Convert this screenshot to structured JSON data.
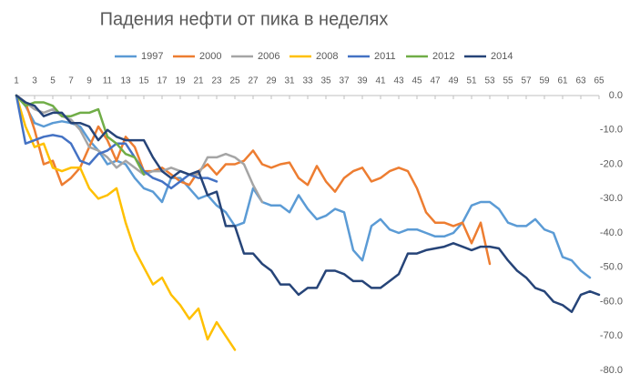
{
  "chart_data": {
    "type": "line",
    "title": "Падения нефти от пика в неделях",
    "x": [
      1,
      2,
      3,
      4,
      5,
      6,
      7,
      8,
      9,
      10,
      11,
      12,
      13,
      14,
      15,
      16,
      17,
      18,
      19,
      20,
      21,
      22,
      23,
      24,
      25,
      26,
      27,
      28,
      29,
      30,
      31,
      32,
      33,
      34,
      35,
      36,
      37,
      38,
      39,
      40,
      41,
      42,
      43,
      44,
      45,
      46,
      47,
      48,
      49,
      50,
      51,
      52,
      53,
      54,
      55,
      56,
      57,
      58,
      59,
      60,
      61,
      62,
      63,
      64,
      65
    ],
    "xlim": [
      1,
      65
    ],
    "xticks": [
      1,
      3,
      5,
      7,
      9,
      11,
      13,
      15,
      17,
      19,
      21,
      23,
      25,
      27,
      29,
      31,
      33,
      35,
      37,
      39,
      41,
      43,
      45,
      47,
      49,
      51,
      53,
      55,
      57,
      59,
      61,
      63,
      65
    ],
    "ylim": [
      -80,
      0
    ],
    "yticks": [
      {
        "value": 0,
        "label": "0.0"
      },
      {
        "value": -10,
        "label": "-10.0"
      },
      {
        "value": -20,
        "label": "-20.0"
      },
      {
        "value": -30,
        "label": "-30.0"
      },
      {
        "value": -40,
        "label": "-40.0"
      },
      {
        "value": -50,
        "label": "-50.0"
      },
      {
        "value": -60,
        "label": "-60.0"
      },
      {
        "value": -70,
        "label": "-70.0"
      },
      {
        "value": -80,
        "label": "-80.0"
      }
    ],
    "legend": "top",
    "series": [
      {
        "name": "1997",
        "color": "#5b9bd5",
        "values": [
          0,
          -3,
          -8,
          -9,
          -8,
          -7.5,
          -8,
          -9,
          -13,
          -16,
          -20,
          -19,
          -20,
          -24,
          -27,
          -28,
          -31,
          -24,
          -24,
          -27,
          -30,
          -29,
          -32,
          -34,
          -38,
          -37,
          -27,
          -31,
          -32,
          -32,
          -34,
          -29,
          -33,
          -36,
          -35,
          -33,
          -34,
          -45,
          -48,
          -38,
          -36,
          -39,
          -40,
          -39,
          -39,
          -40,
          -41,
          -41,
          -40,
          -37,
          -32,
          -31,
          -31,
          -33,
          -37,
          -38,
          -38,
          -36,
          -39,
          -40,
          -47,
          -48,
          -51,
          -53,
          null
        ]
      },
      {
        "name": "2000",
        "color": "#ed7d31",
        "values": [
          0,
          -2,
          -10,
          -20,
          -19,
          -26,
          -24,
          -21,
          -15,
          -9,
          -13,
          -19,
          -12,
          -15,
          -22,
          -22,
          -21,
          -23,
          -25,
          -26,
          -22,
          -20,
          -23,
          -20,
          -20,
          -19,
          -16,
          -20,
          -21,
          -20,
          -19.5,
          -24,
          -26,
          -20.5,
          -25,
          -28,
          -24,
          -22,
          -21,
          -25,
          -24,
          -22,
          -21,
          -22,
          -27,
          -34,
          -37,
          -37,
          -38,
          -37,
          -43,
          -37,
          -49,
          null,
          null,
          null,
          null,
          null,
          null,
          null,
          null,
          null,
          null,
          null,
          null
        ]
      },
      {
        "name": "2006",
        "color": "#a5a5a5",
        "values": [
          0,
          -2,
          -4,
          -5,
          -4,
          -6,
          -7,
          -10,
          -15,
          -16,
          -18,
          -21,
          -19,
          -21,
          -23,
          -22,
          -22,
          -21,
          -22,
          -23,
          -23,
          -18,
          -18,
          -17,
          -18,
          -20,
          -26,
          -31,
          null,
          null,
          null,
          null,
          null,
          null,
          null,
          null,
          null,
          null,
          null,
          null,
          null,
          null,
          null,
          null,
          null,
          null,
          null,
          null,
          null,
          null,
          null,
          null,
          null,
          null,
          null,
          null,
          null,
          null,
          null,
          null,
          null,
          null,
          null,
          null,
          null
        ]
      },
      {
        "name": "2008",
        "color": "#ffc000",
        "values": [
          0,
          -9,
          -15,
          -14,
          -21,
          -22,
          -21,
          -21,
          -27,
          -30,
          -29,
          -27,
          -37,
          -45,
          -50,
          -55,
          -53,
          -58,
          -61,
          -65,
          -62,
          -71,
          -66,
          -70,
          -74,
          null,
          null,
          null,
          null,
          null,
          null,
          null,
          null,
          null,
          null,
          null,
          null,
          null,
          null,
          null,
          null,
          null,
          null,
          null,
          null,
          null,
          null,
          null,
          null,
          null,
          null,
          null,
          null,
          null,
          null,
          null,
          null,
          null,
          null,
          null,
          null,
          null,
          null,
          null,
          null
        ]
      },
      {
        "name": "2011",
        "color": "#4472c4",
        "values": [
          0,
          -14,
          -13,
          -12,
          -11.5,
          -12,
          -14,
          -19,
          -20,
          -17,
          -16,
          -14,
          -14,
          -18,
          -22,
          -24,
          -25,
          -27,
          -25,
          -23,
          -24,
          -24,
          -25,
          null,
          null,
          null,
          null,
          null,
          null,
          null,
          null,
          null,
          null,
          null,
          null,
          null,
          null,
          null,
          null,
          null,
          null,
          null,
          null,
          null,
          null,
          null,
          null,
          null,
          null,
          null,
          null,
          null,
          null,
          null,
          null,
          null,
          null,
          null,
          null,
          null,
          null,
          null,
          null,
          null,
          null
        ]
      },
      {
        "name": "2012",
        "color": "#70ad47",
        "values": [
          0,
          -3,
          -2,
          -2,
          -3,
          -6,
          -6,
          -5,
          -5,
          -4,
          -12,
          -14,
          -17,
          -18,
          -23,
          null,
          null,
          null,
          null,
          null,
          null,
          null,
          null,
          null,
          null,
          null,
          null,
          null,
          null,
          null,
          null,
          null,
          null,
          null,
          null,
          null,
          null,
          null,
          null,
          null,
          null,
          null,
          null,
          null,
          null,
          null,
          null,
          null,
          null,
          null,
          null,
          null,
          null,
          null,
          null,
          null,
          null,
          null,
          null,
          null,
          null,
          null,
          null,
          null,
          null
        ]
      },
      {
        "name": "2014",
        "color": "#264478",
        "values": [
          0,
          -2,
          -3,
          -6,
          -5,
          -5,
          -8,
          -8,
          -9,
          -13,
          -10,
          -12,
          -13,
          -13,
          -13,
          -18,
          -22,
          -24,
          -22,
          -23,
          -22,
          -29,
          -28,
          -38,
          -38,
          -46,
          -46,
          -49,
          -51,
          -55,
          -55,
          -58,
          -56,
          -56,
          -51,
          -51,
          -52,
          -54,
          -54,
          -56,
          -56,
          -54,
          -52,
          -46,
          -46,
          -45,
          -44.5,
          -44,
          -43,
          -44,
          -45,
          -44,
          -44,
          -44.5,
          -48,
          -51,
          -53,
          -56,
          -57,
          -60,
          -61,
          -63,
          -58,
          -57,
          -58
        ]
      }
    ]
  }
}
